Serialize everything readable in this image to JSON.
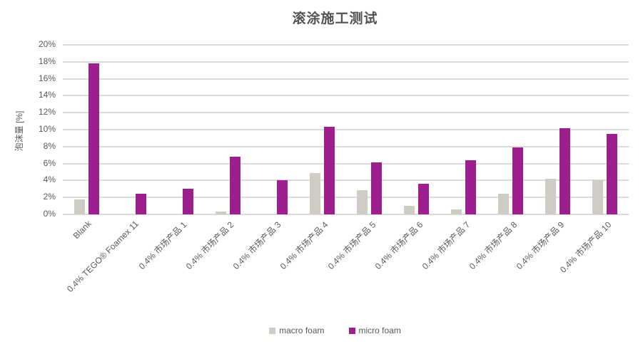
{
  "title": "滚涂施工测试",
  "chart_data": {
    "type": "bar",
    "title": "滚涂施工测试",
    "xlabel": "",
    "ylabel": "泡沫量 [%]",
    "ylim": [
      0,
      20
    ],
    "ytick_step": 2,
    "ytick_suffix": "%",
    "grid": true,
    "legend_position": "bottom",
    "categories": [
      "Blank",
      "0.4% TEGO® Foamex 11",
      "0.4% 市场产品 1",
      "0.4% 市场产品 2",
      "0.4% 市场产品 3",
      "0.4% 市场产品 4",
      "0.4% 市场产品 5",
      "0.4% 市场产品 6",
      "0.4% 市场产品 7",
      "0.4% 市场产品 8",
      "0.4% 市场产品 9",
      "0.4% 市场产品 10"
    ],
    "series": [
      {
        "name": "macro foam",
        "color": "#cfccc6",
        "values": [
          1.8,
          0,
          0,
          0.3,
          0,
          4.9,
          2.9,
          1.0,
          0.6,
          2.4,
          4.2,
          4.0
        ]
      },
      {
        "name": "micro foam",
        "color": "#9c1f8d",
        "values": [
          17.8,
          2.4,
          3.0,
          6.8,
          4.0,
          10.3,
          6.1,
          3.6,
          6.4,
          7.9,
          10.2,
          9.5
        ]
      }
    ],
    "colors": {
      "background": "#ffffff",
      "gridline": "#dbdbdb",
      "text": "#595959",
      "title_text": "#535353",
      "accent_magenta": "#9c1f8d",
      "accent_gray": "#cfccc6"
    }
  }
}
